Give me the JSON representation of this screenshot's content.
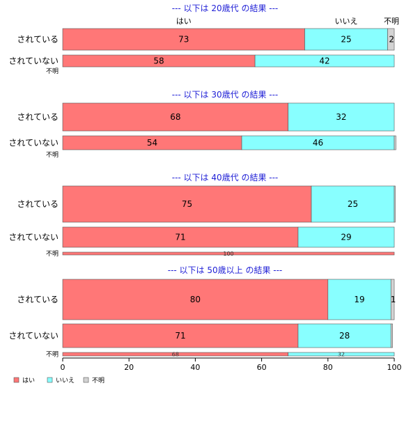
{
  "chart_data": {
    "type": "bar",
    "orientation": "horizontal-stacked-percent",
    "xlim": [
      0,
      100
    ],
    "xticks": [
      0,
      20,
      40,
      60,
      80,
      100
    ],
    "legend": {
      "placement": "bottom-left",
      "entries": [
        {
          "name": "はい",
          "color": "#ff7777"
        },
        {
          "name": "いいえ",
          "color": "#88ffff"
        },
        {
          "name": "不明",
          "color": "#d3d3d3"
        }
      ]
    },
    "panels": [
      {
        "title": "--- 以下は 20歳代 の結果 ---",
        "top_category_labels": [
          "はい",
          "いいえ",
          "不明"
        ],
        "rows": [
          {
            "label": "されている",
            "values": [
              73,
              25,
              2
            ],
            "labels": [
              "73",
              "25",
              "2"
            ]
          },
          {
            "label": "されていない",
            "values": [
              58,
              42,
              0
            ],
            "labels": [
              "58",
              "42",
              ""
            ]
          },
          {
            "label": "不明",
            "values": [
              0,
              0,
              0
            ],
            "labels": [
              "",
              "",
              ""
            ]
          }
        ]
      },
      {
        "title": "--- 以下は 30歳代 の結果 ---",
        "rows": [
          {
            "label": "されている",
            "values": [
              68,
              32,
              0
            ],
            "labels": [
              "68",
              "32",
              ""
            ]
          },
          {
            "label": "されていない",
            "values": [
              54,
              46,
              0.5
            ],
            "labels": [
              "54",
              "46",
              ""
            ]
          },
          {
            "label": "不明",
            "values": [
              0,
              0,
              0
            ],
            "labels": [
              "",
              "",
              ""
            ]
          }
        ]
      },
      {
        "title": "--- 以下は 40歳代 の結果 ---",
        "rows": [
          {
            "label": "されている",
            "values": [
              75,
              25,
              0.3
            ],
            "labels": [
              "75",
              "25",
              ""
            ]
          },
          {
            "label": "されていない",
            "values": [
              71,
              29,
              0
            ],
            "labels": [
              "71",
              "29",
              ""
            ]
          },
          {
            "label": "不明",
            "values": [
              100,
              0,
              0
            ],
            "labels": [
              "100",
              "",
              ""
            ]
          }
        ]
      },
      {
        "title": "--- 以下は 50歳以上 の結果 ---",
        "rows": [
          {
            "label": "されている",
            "values": [
              80,
              19,
              1
            ],
            "labels": [
              "80",
              "19",
              "1"
            ]
          },
          {
            "label": "されていない",
            "values": [
              71,
              28,
              0.5
            ],
            "labels": [
              "71",
              "28",
              ""
            ]
          },
          {
            "label": "不明",
            "values": [
              68,
              32,
              0
            ],
            "labels": [
              "68",
              "32",
              ""
            ]
          }
        ]
      }
    ]
  }
}
